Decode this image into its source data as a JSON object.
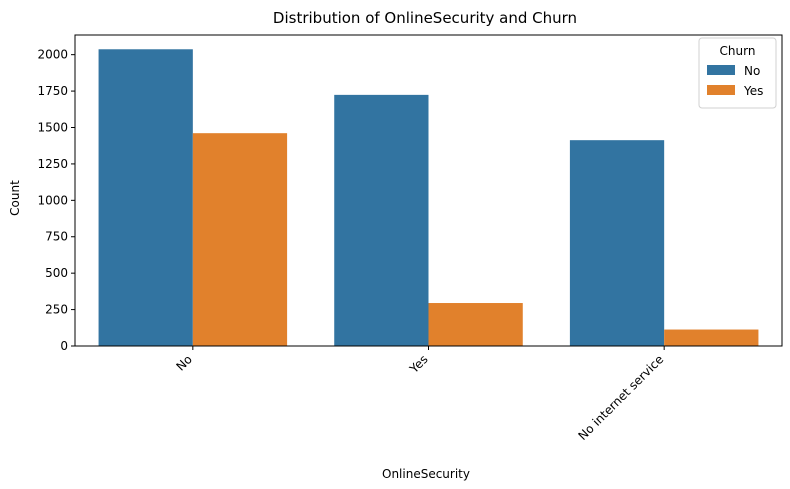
{
  "chart_data": {
    "type": "bar",
    "title": "Distribution of OnlineSecurity and Churn",
    "xlabel": "OnlineSecurity",
    "ylabel": "Count",
    "categories": [
      "No",
      "Yes",
      "No internet service"
    ],
    "series": [
      {
        "name": "No",
        "values": [
          2037,
          1724,
          1413
        ],
        "color": "#3274a1"
      },
      {
        "name": "Yes",
        "values": [
          1461,
          295,
          113
        ],
        "color": "#e1812c"
      }
    ],
    "ylim": [
      0,
      2135
    ],
    "yticks": [
      0,
      250,
      500,
      750,
      1000,
      1250,
      1500,
      1750,
      2000
    ],
    "grid": false,
    "legend": {
      "title": "Churn",
      "placement": "top-right"
    }
  }
}
